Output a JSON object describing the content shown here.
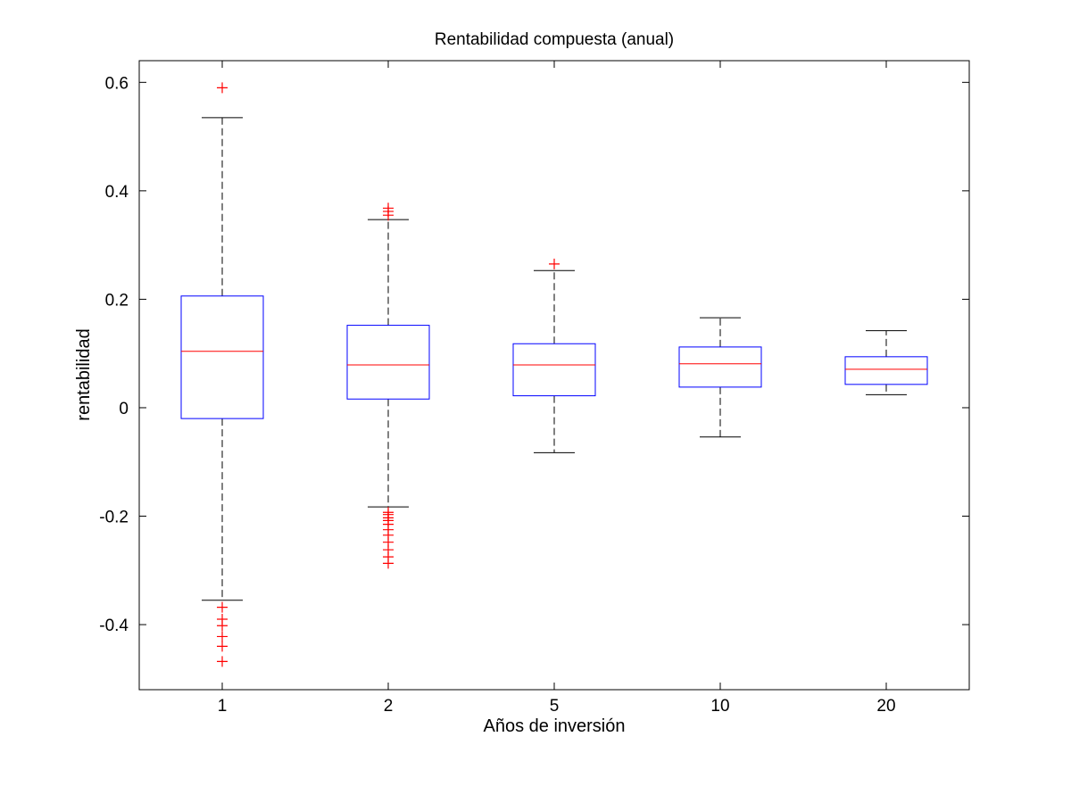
{
  "chart_data": {
    "type": "boxplot",
    "title": "Rentabilidad compuesta (anual)",
    "xlabel": "Años de inversión",
    "ylabel": "rentabilidad",
    "categories": [
      "1",
      "2",
      "5",
      "10",
      "20"
    ],
    "ylim": [
      -0.52,
      0.64
    ],
    "yticks": [
      -0.4,
      -0.2,
      0,
      0.2,
      0.4,
      0.6
    ],
    "ytick_labels": [
      "-0.4",
      "-0.2",
      "0",
      "0.2",
      "0.4",
      "0.6"
    ],
    "grid": false,
    "boxes": [
      {
        "category": "1",
        "whisker_low": -0.355,
        "q1": -0.02,
        "median": 0.104,
        "q3": 0.206,
        "whisker_high": 0.535,
        "outliers": [
          0.59,
          -0.368,
          -0.39,
          -0.402,
          -0.422,
          -0.44,
          -0.468
        ]
      },
      {
        "category": "2",
        "whisker_low": -0.183,
        "q1": 0.016,
        "median": 0.079,
        "q3": 0.152,
        "whisker_high": 0.347,
        "outliers": [
          0.355,
          0.362,
          0.368,
          -0.193,
          -0.197,
          -0.203,
          -0.208,
          -0.215,
          -0.225,
          -0.235,
          -0.248,
          -0.262,
          -0.275,
          -0.287
        ]
      },
      {
        "category": "5",
        "whisker_low": -0.083,
        "q1": 0.022,
        "median": 0.079,
        "q3": 0.118,
        "whisker_high": 0.253,
        "outliers": [
          0.265
        ]
      },
      {
        "category": "10",
        "whisker_low": -0.054,
        "q1": 0.038,
        "median": 0.081,
        "q3": 0.112,
        "whisker_high": 0.166,
        "outliers": []
      },
      {
        "category": "20",
        "whisker_low": 0.024,
        "q1": 0.043,
        "median": 0.071,
        "q3": 0.094,
        "whisker_high": 0.142,
        "outliers": []
      }
    ],
    "colors": {
      "box": "#0000ff",
      "median": "#ff0000",
      "whisker": "#000000",
      "outlier": "#ff0000",
      "axes": "#000000",
      "background": "#ffffff"
    }
  }
}
